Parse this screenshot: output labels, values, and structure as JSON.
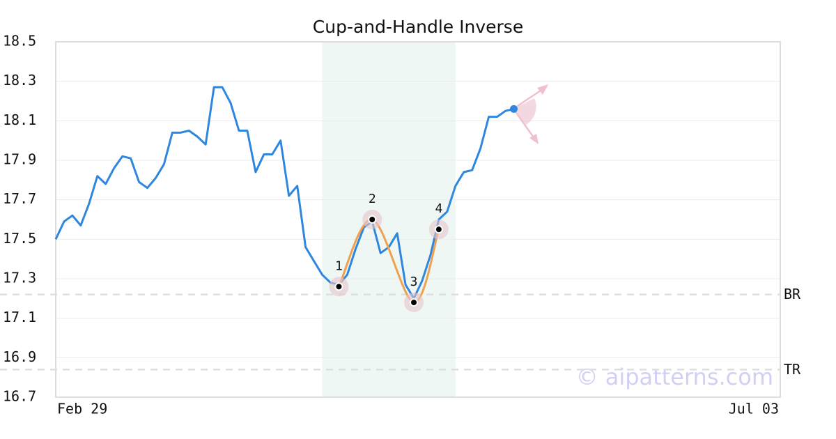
{
  "chart_data": {
    "type": "line",
    "title": "Cup-and-Handle Inverse",
    "watermark": "© aipatterns.com",
    "categories": [
      "Feb 29",
      null,
      null,
      null,
      null,
      null,
      null,
      null,
      null,
      null,
      null,
      null,
      null,
      null,
      null,
      null,
      null,
      null,
      null,
      null,
      null,
      null,
      null,
      null,
      null,
      null,
      null,
      null,
      null,
      null,
      null,
      null,
      null,
      null,
      null,
      null,
      null,
      null,
      null,
      null,
      null,
      null,
      null,
      null,
      null,
      null,
      null,
      null,
      null,
      null,
      null,
      null,
      null,
      null,
      null,
      null,
      null,
      null,
      null,
      null,
      null,
      null,
      null,
      null,
      null,
      null,
      null,
      null,
      null,
      null,
      null,
      null,
      null,
      null,
      null,
      null,
      null,
      null,
      null,
      null,
      null,
      null,
      null,
      null,
      null,
      null,
      null,
      "Jul 03"
    ],
    "series": [
      {
        "color": "#2e86de",
        "values": [
          17.5,
          17.59,
          17.62,
          17.57,
          17.68,
          17.82,
          17.78,
          17.86,
          17.92,
          17.91,
          17.79,
          17.76,
          17.81,
          17.88,
          18.04,
          18.04,
          18.05,
          18.02,
          17.98,
          18.27,
          18.27,
          18.19,
          18.05,
          18.05,
          17.84,
          17.93,
          17.93,
          18.0,
          17.72,
          17.77,
          17.46,
          17.39,
          17.32,
          17.28,
          17.27,
          17.32,
          17.45,
          17.56,
          17.59,
          17.43,
          17.46,
          17.53,
          17.27,
          17.2,
          17.29,
          17.42,
          17.6,
          17.64,
          17.77,
          17.84,
          17.85,
          17.96,
          18.12,
          18.12,
          18.15,
          18.16,
          null,
          null,
          null,
          null,
          null,
          null,
          null,
          null,
          null,
          null,
          null,
          null,
          null,
          null,
          null,
          null,
          null,
          null,
          null,
          null,
          null,
          null,
          null,
          null,
          null,
          null,
          null,
          null,
          null,
          null,
          null,
          null
        ]
      }
    ],
    "highlight": {
      "start": 32,
      "end": 48,
      "color": "#eef7f3"
    },
    "pattern": {
      "color": "#f0a050",
      "points": [
        {
          "x": 34,
          "value": 17.26,
          "label": "1"
        },
        {
          "x": 38,
          "value": 17.6,
          "label": "2"
        },
        {
          "x": 43,
          "value": 17.18,
          "label": "3"
        },
        {
          "x": 46,
          "value": 17.55,
          "label": "4"
        }
      ]
    },
    "levels": [
      {
        "label": "BR",
        "value": 17.22
      },
      {
        "label": "TR",
        "value": 16.84
      }
    ],
    "ylim": [
      16.7,
      18.5
    ],
    "yticks": [
      16.7,
      16.9,
      17.1,
      17.3,
      17.5,
      17.7,
      17.9,
      18.1,
      18.3,
      18.5
    ],
    "grid": true
  }
}
